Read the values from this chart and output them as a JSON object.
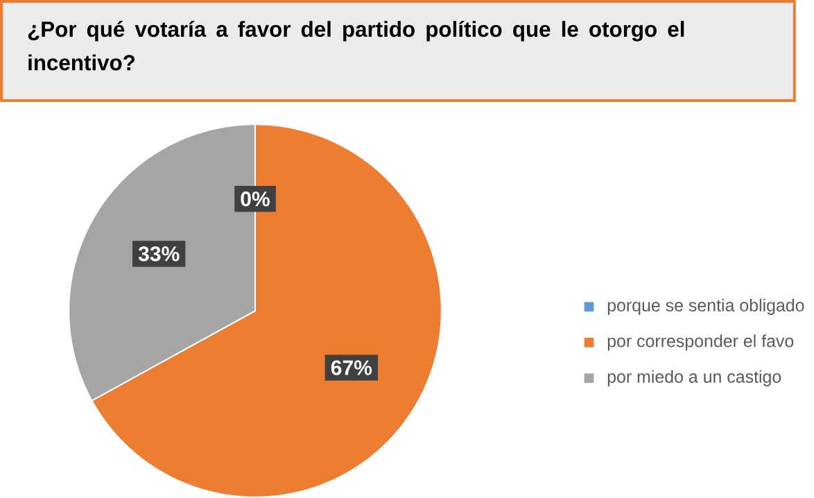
{
  "chart_data": {
    "type": "pie",
    "title": "¿Por qué votaría a favor del partido político que le otorgo el incentivo?",
    "categories": [
      "porque se sentia obligado",
      "por corresponder el favo",
      "por miedo a un castigo"
    ],
    "values": [
      0,
      67,
      33
    ],
    "colors": [
      "#5b9bd5",
      "#ed7d31",
      "#a5a5a5"
    ],
    "value_labels": [
      "0%",
      "67%",
      "33%"
    ],
    "legend": "right"
  }
}
